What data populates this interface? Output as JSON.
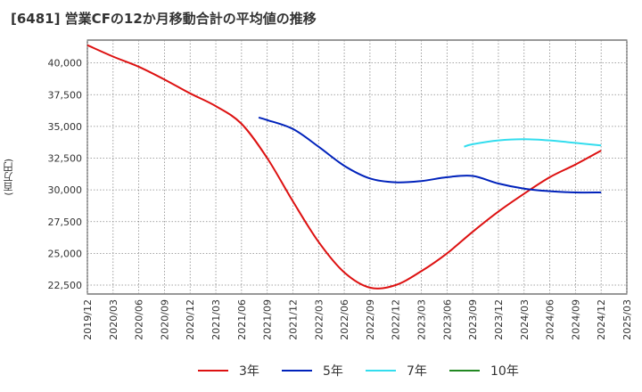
{
  "title": "[6481]  営業CFの12か月移動合計の平均値の推移",
  "ylabel_text": "(百万円)",
  "chart_data": {
    "type": "line",
    "title": "[6481]  営業CFの12か月移動合計の平均値の推移",
    "ylabel": "(百万円)",
    "xlabel": "",
    "x_ticks": [
      "2019/12",
      "2020/03",
      "2020/06",
      "2020/09",
      "2020/12",
      "2021/03",
      "2021/06",
      "2021/09",
      "2021/12",
      "2022/03",
      "2022/06",
      "2022/09",
      "2022/12",
      "2023/03",
      "2023/06",
      "2023/09",
      "2023/12",
      "2024/03",
      "2024/06",
      "2024/09",
      "2024/12",
      "2025/03"
    ],
    "y_ticks": [
      "22,500",
      "25,000",
      "27,500",
      "30,000",
      "32,500",
      "35,000",
      "37,500",
      "40,000"
    ],
    "y_tick_values": [
      22500,
      25000,
      27500,
      30000,
      32500,
      35000,
      37500,
      40000
    ],
    "ylim": [
      21800,
      41800
    ],
    "xlim": [
      "2019/12",
      "2025/03"
    ],
    "grid": true,
    "legend_position": "bottom",
    "series": [
      {
        "name": "3年",
        "color": "#dd1111",
        "points": [
          [
            "2019/12",
            41400
          ],
          [
            "2020/03",
            40500
          ],
          [
            "2020/06",
            39700
          ],
          [
            "2020/09",
            38700
          ],
          [
            "2020/12",
            37600
          ],
          [
            "2021/03",
            36600
          ],
          [
            "2021/06",
            35200
          ],
          [
            "2021/09",
            32500
          ],
          [
            "2021/12",
            29100
          ],
          [
            "2022/03",
            25900
          ],
          [
            "2022/06",
            23500
          ],
          [
            "2022/09",
            22300
          ],
          [
            "2022/12",
            22500
          ],
          [
            "2023/03",
            23600
          ],
          [
            "2023/06",
            25000
          ],
          [
            "2023/09",
            26700
          ],
          [
            "2023/12",
            28300
          ],
          [
            "2024/03",
            29700
          ],
          [
            "2024/06",
            31000
          ],
          [
            "2024/09",
            32000
          ],
          [
            "2024/12",
            33100
          ]
        ]
      },
      {
        "name": "5年",
        "color": "#0022bb",
        "points": [
          [
            "2021/08",
            35700
          ],
          [
            "2021/09",
            35500
          ],
          [
            "2021/12",
            34800
          ],
          [
            "2022/03",
            33400
          ],
          [
            "2022/06",
            31900
          ],
          [
            "2022/09",
            30900
          ],
          [
            "2022/12",
            30600
          ],
          [
            "2023/03",
            30700
          ],
          [
            "2023/06",
            31000
          ],
          [
            "2023/09",
            31100
          ],
          [
            "2023/12",
            30500
          ],
          [
            "2024/03",
            30100
          ],
          [
            "2024/06",
            29900
          ],
          [
            "2024/09",
            29800
          ],
          [
            "2024/12",
            29800
          ]
        ]
      },
      {
        "name": "7年",
        "color": "#33ddee",
        "points": [
          [
            "2023/08",
            33400
          ],
          [
            "2023/09",
            33600
          ],
          [
            "2023/12",
            33900
          ],
          [
            "2024/03",
            34000
          ],
          [
            "2024/06",
            33900
          ],
          [
            "2024/09",
            33700
          ],
          [
            "2024/12",
            33500
          ]
        ]
      },
      {
        "name": "10年",
        "color": "#228822",
        "points": []
      }
    ]
  }
}
